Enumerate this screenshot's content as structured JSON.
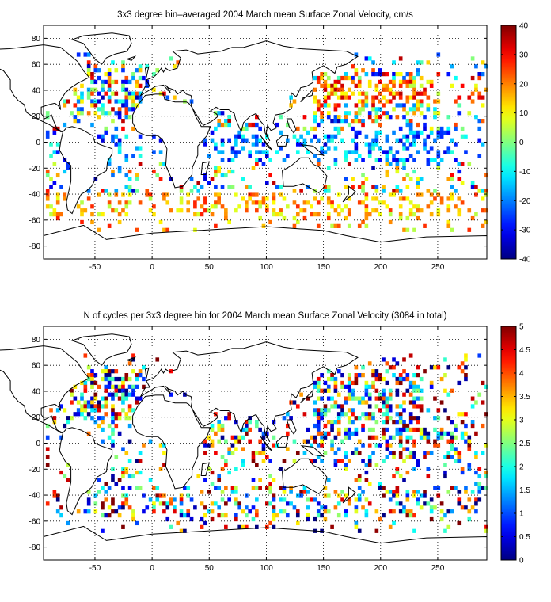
{
  "chart_data": [
    {
      "type": "heatmap",
      "title": "3x3 degree bin–averaged 2004 March mean Surface Zonal Velocity, cm/s",
      "xlim": [
        -95,
        293
      ],
      "ylim": [
        -90,
        90
      ],
      "xticks": [
        -50,
        0,
        50,
        100,
        150,
        200,
        250
      ],
      "yticks": [
        80,
        60,
        40,
        20,
        0,
        -20,
        -40,
        -60,
        -80
      ],
      "grid": true,
      "colormap": "jet",
      "clim": [
        -40,
        40
      ],
      "colorbar_ticks": [
        40,
        30,
        20,
        10,
        0,
        -10,
        -20,
        -30,
        -40
      ],
      "bin_size_deg": 3,
      "cells_summary": "sparse Argo float bins over ocean areas between about 70S and 70N"
    },
    {
      "type": "heatmap",
      "title": "N of cycles per 3x3 degree bin for 2004 March mean Surface Zonal Velocity (3084 in total)",
      "xlim": [
        -95,
        293
      ],
      "ylim": [
        -90,
        90
      ],
      "xticks": [
        -50,
        0,
        50,
        100,
        150,
        200,
        250
      ],
      "yticks": [
        80,
        60,
        40,
        20,
        0,
        -20,
        -40,
        -60,
        -80
      ],
      "grid": true,
      "colormap": "jet",
      "clim": [
        0,
        5
      ],
      "colorbar_ticks": [
        5,
        4.5,
        4,
        3.5,
        3,
        2.5,
        2,
        1.5,
        1,
        0.5,
        0
      ],
      "bin_size_deg": 3,
      "total_cycles": 3084
    }
  ]
}
